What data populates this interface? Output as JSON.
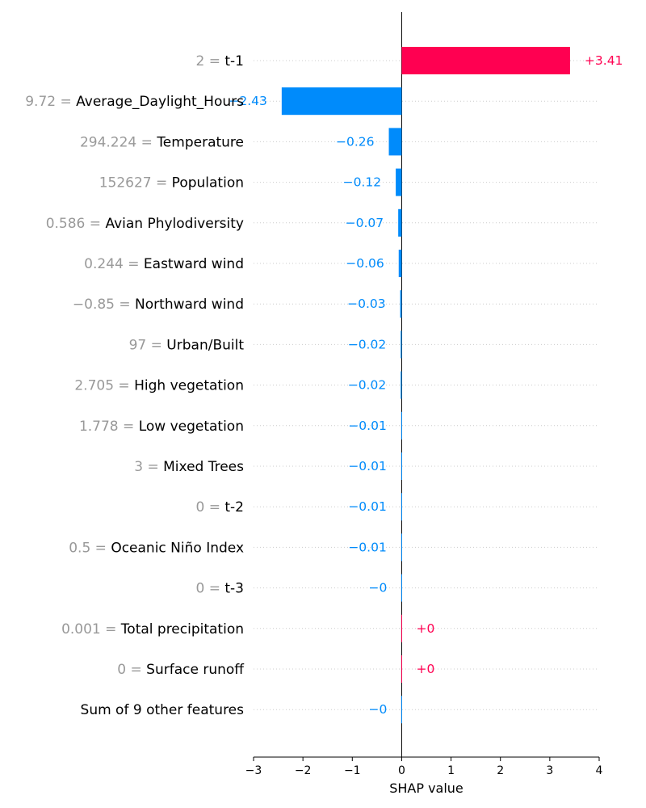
{
  "chart_data": {
    "type": "bar",
    "orientation": "horizontal",
    "xlabel": "SHAP value",
    "xlim": [
      -3,
      4
    ],
    "xticks": [
      "−3",
      "−2",
      "−1",
      "0",
      "1",
      "2",
      "3",
      "4"
    ],
    "colors": {
      "positive": "#ff0051",
      "negative": "#008bfb",
      "feature_value": "#999999",
      "feature_name": "#000000"
    },
    "features": [
      {
        "value": "2",
        "name": "t-1",
        "shap": 3.41,
        "label": "+3.41"
      },
      {
        "value": "9.72",
        "name": "Average_Daylight_Hours",
        "shap": -2.43,
        "label": "−2.43"
      },
      {
        "value": "294.224",
        "name": "Temperature",
        "shap": -0.26,
        "label": "−0.26"
      },
      {
        "value": "152627",
        "name": "Population",
        "shap": -0.12,
        "label": "−0.12"
      },
      {
        "value": "0.586",
        "name": "Avian Phylodiversity",
        "shap": -0.07,
        "label": "−0.07"
      },
      {
        "value": "0.244",
        "name": "Eastward wind",
        "shap": -0.06,
        "label": "−0.06"
      },
      {
        "value": "−0.85",
        "name": "Northward wind",
        "shap": -0.03,
        "label": "−0.03"
      },
      {
        "value": "97",
        "name": "Urban/Built",
        "shap": -0.02,
        "label": "−0.02"
      },
      {
        "value": "2.705",
        "name": "High vegetation",
        "shap": -0.02,
        "label": "−0.02"
      },
      {
        "value": "1.778",
        "name": "Low vegetation",
        "shap": -0.01,
        "label": "−0.01"
      },
      {
        "value": "3",
        "name": "Mixed Trees",
        "shap": -0.01,
        "label": "−0.01"
      },
      {
        "value": "0",
        "name": "t-2",
        "shap": -0.01,
        "label": "−0.01"
      },
      {
        "value": "0.5",
        "name": "Oceanic Niño Index",
        "shap": -0.01,
        "label": "−0.01"
      },
      {
        "value": "0",
        "name": "t-3",
        "shap": -0.001,
        "label": "−0"
      },
      {
        "value": "0.001",
        "name": "Total precipitation",
        "shap": 0.001,
        "label": "+0"
      },
      {
        "value": "0",
        "name": "Surface runoff",
        "shap": 0.001,
        "label": "+0"
      },
      {
        "value": "",
        "name": "Sum of 9 other features",
        "shap": -0.001,
        "label": "−0"
      }
    ]
  }
}
